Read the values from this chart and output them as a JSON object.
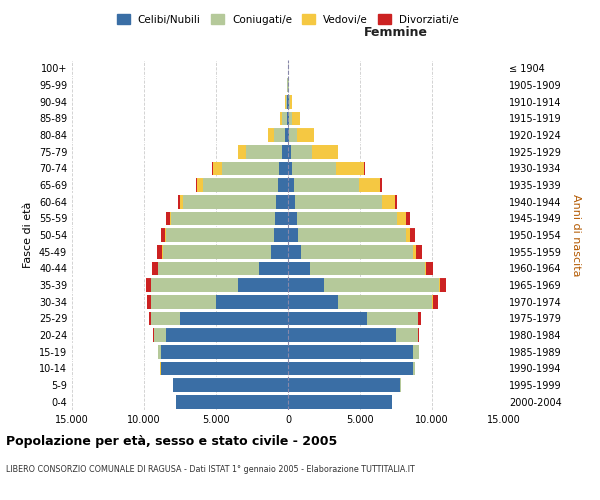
{
  "age_groups": [
    "0-4",
    "5-9",
    "10-14",
    "15-19",
    "20-24",
    "25-29",
    "30-34",
    "35-39",
    "40-44",
    "45-49",
    "50-54",
    "55-59",
    "60-64",
    "65-69",
    "70-74",
    "75-79",
    "80-84",
    "85-89",
    "90-94",
    "95-99",
    "100+"
  ],
  "birth_years": [
    "2000-2004",
    "1995-1999",
    "1990-1994",
    "1985-1989",
    "1980-1984",
    "1975-1979",
    "1970-1974",
    "1965-1969",
    "1960-1964",
    "1955-1959",
    "1950-1954",
    "1945-1949",
    "1940-1944",
    "1935-1939",
    "1930-1934",
    "1925-1929",
    "1920-1924",
    "1915-1919",
    "1910-1914",
    "1905-1909",
    "≤ 1904"
  ],
  "male": {
    "celibi": [
      7800,
      8000,
      8800,
      8800,
      8500,
      7500,
      5000,
      3500,
      2000,
      1200,
      1000,
      900,
      800,
      700,
      600,
      400,
      200,
      100,
      50,
      20,
      10
    ],
    "coniugati": [
      5,
      10,
      50,
      200,
      800,
      2000,
      4500,
      6000,
      7000,
      7500,
      7500,
      7200,
      6500,
      5200,
      4000,
      2500,
      800,
      300,
      100,
      30,
      10
    ],
    "vedovi": [
      0,
      0,
      5,
      5,
      10,
      20,
      20,
      20,
      20,
      30,
      50,
      100,
      200,
      400,
      600,
      600,
      400,
      150,
      50,
      10,
      5
    ],
    "divorziati": [
      0,
      0,
      5,
      10,
      50,
      150,
      300,
      350,
      400,
      350,
      300,
      250,
      150,
      100,
      50,
      0,
      0,
      0,
      0,
      0,
      0
    ]
  },
  "female": {
    "nubili": [
      7200,
      7800,
      8700,
      8700,
      7500,
      5500,
      3500,
      2500,
      1500,
      900,
      700,
      600,
      500,
      400,
      300,
      200,
      100,
      100,
      50,
      20,
      10
    ],
    "coniugate": [
      5,
      20,
      100,
      400,
      1500,
      3500,
      6500,
      8000,
      8000,
      7800,
      7500,
      7000,
      6000,
      4500,
      3000,
      1500,
      500,
      200,
      100,
      30,
      10
    ],
    "vedove": [
      0,
      0,
      0,
      5,
      10,
      30,
      50,
      80,
      100,
      200,
      300,
      600,
      900,
      1500,
      2000,
      1800,
      1200,
      500,
      150,
      30,
      10
    ],
    "divorziate": [
      0,
      0,
      5,
      20,
      80,
      200,
      350,
      400,
      450,
      400,
      350,
      300,
      150,
      100,
      50,
      0,
      0,
      0,
      0,
      0,
      0
    ]
  },
  "colors": {
    "celibi": "#3a6ea5",
    "coniugati": "#b5c99a",
    "vedovi": "#f5c842",
    "divorziati": "#cc2222"
  },
  "xlim": 15000,
  "title": "Popolazione per età, sesso e stato civile - 2005",
  "subtitle": "LIBERO CONSORZIO COMUNALE DI RAGUSA - Dati ISTAT 1° gennaio 2005 - Elaborazione TUTTITALIA.IT",
  "xlabel_right": "Femmine",
  "ylabel_left": "Fasce di età",
  "ylabel_right": "Anni di nascita",
  "legend_labels": [
    "Celibi/Nubili",
    "Coniugati/e",
    "Vedovi/e",
    "Divorziati/e"
  ],
  "bg_color": "#ffffff",
  "plot_bg_color": "#ffffff",
  "grid_color": "#cccccc"
}
